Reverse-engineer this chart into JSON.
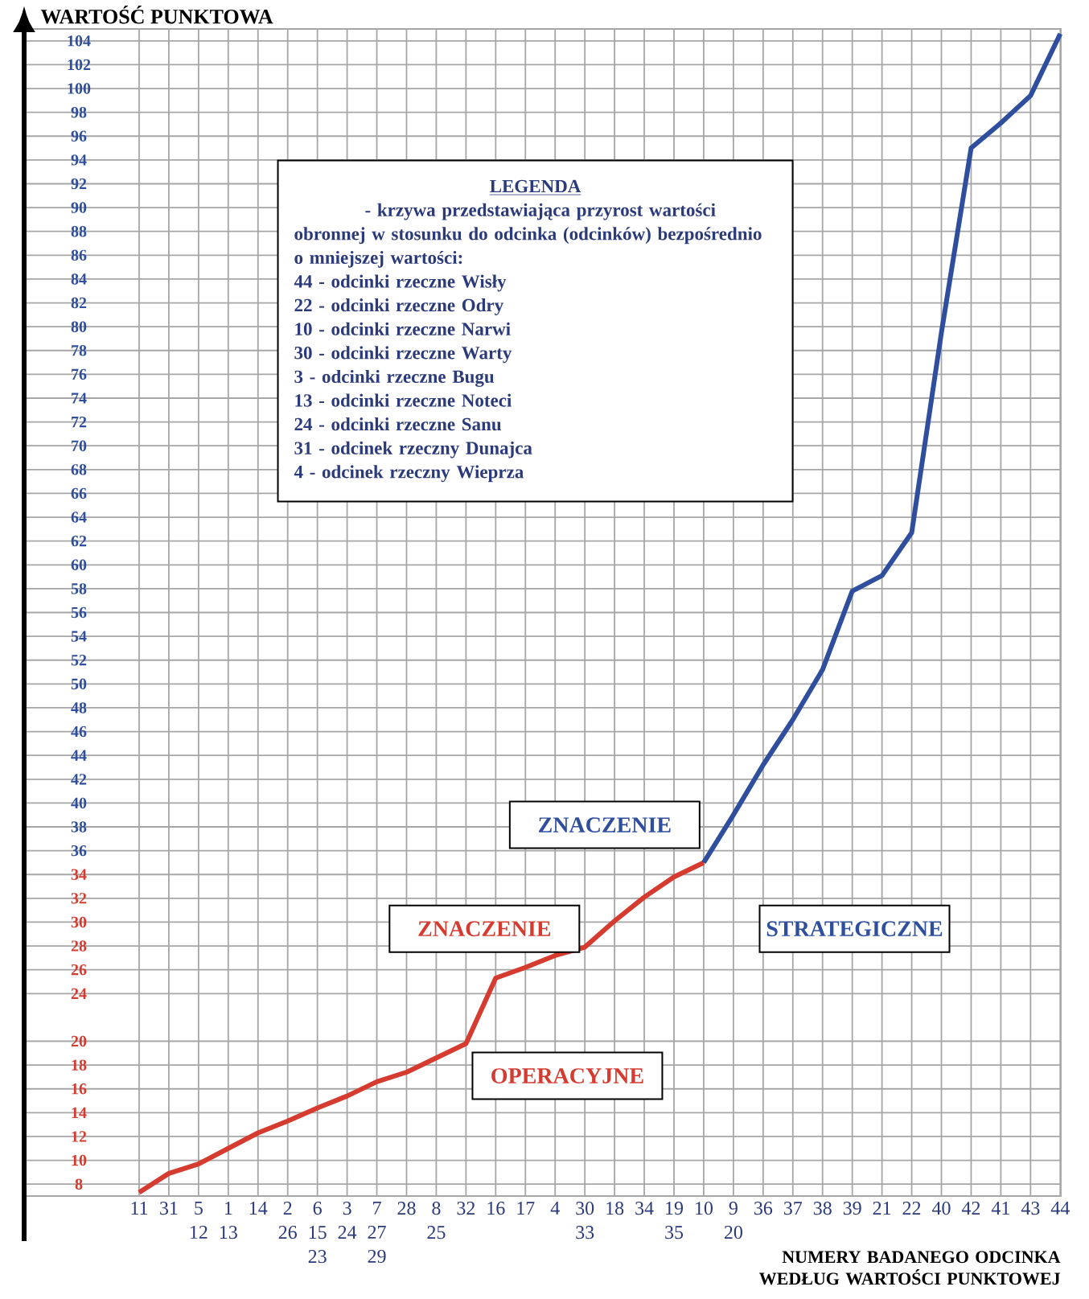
{
  "chart_data": {
    "type": "line",
    "xlabel": "NUMERY BADANEGO ODCINKA WEDŁUG WARTOŚCI PUNKTOWEJ",
    "ylabel": "WARTOŚĆ PUNKTOWA",
    "categories": [
      "11",
      "31",
      "5 12",
      "1 13",
      "14",
      "2 26",
      "6 15 23",
      "3 24",
      "7 27 29",
      "28",
      "8 25",
      "32",
      "16",
      "17",
      "4",
      "30 33",
      "18",
      "34",
      "19 35",
      "10",
      "9 20",
      "36",
      "37",
      "38",
      "39",
      "21",
      "22",
      "40",
      "42",
      "41",
      "43",
      "44"
    ],
    "series": [
      {
        "color": "#d63b30",
        "values": [
          7.3,
          8.9,
          9.7,
          11.0,
          12.3,
          13.3,
          14.4,
          15.4,
          16.6,
          17.4,
          18.6,
          19.8,
          25.3,
          26.2,
          27.2,
          27.9,
          30.1,
          32.1,
          33.8,
          35.0,
          null,
          null,
          null,
          null,
          null,
          null,
          null,
          null,
          null,
          null,
          null,
          null
        ]
      },
      {
        "color": "#2f4f9e",
        "values": [
          null,
          null,
          null,
          null,
          null,
          null,
          null,
          null,
          null,
          null,
          null,
          null,
          null,
          null,
          null,
          null,
          null,
          null,
          null,
          35.0,
          39.0,
          43.2,
          47.0,
          51.2,
          57.8,
          59.1,
          62.7,
          79.5,
          95.0,
          97.1,
          99.4,
          104.6
        ]
      }
    ],
    "ylim": [
      7,
      105
    ],
    "yticks": [
      8,
      10,
      12,
      14,
      16,
      18,
      20,
      24,
      26,
      28,
      30,
      32,
      34,
      36,
      38,
      40,
      42,
      44,
      46,
      48,
      50,
      52,
      54,
      56,
      58,
      60,
      62,
      64,
      66,
      68,
      70,
      72,
      74,
      76,
      78,
      80,
      82,
      84,
      86,
      88,
      90,
      92,
      94,
      96,
      98,
      100,
      102,
      104
    ],
    "grid": true,
    "marker": "none",
    "annotations": [
      "ZNACZENIE",
      "OPERACYJNE",
      "ZNACZENIE",
      "STRATEGICZNE",
      "LEGENDA",
      "- krzywa przedstawiająca przyrost wartości obronnej w stosunku do odcinka (odcinków) bezpośrednio o mniejszej wartości:",
      "44 - odcinki rzeczne Wisły",
      "22 - odcinki rzeczne Odry",
      "10 - odcinki rzeczne Narwi",
      "30 - odcinki rzeczne Warty",
      "3 - odcinki rzeczne Bugu",
      "13 - odcinki rzeczne Noteci",
      "24 - odcinki rzeczne Sanu",
      "31 - odcinek rzeczny Dunajca",
      "4 - odcinek rzeczny Wieprza"
    ]
  }
}
